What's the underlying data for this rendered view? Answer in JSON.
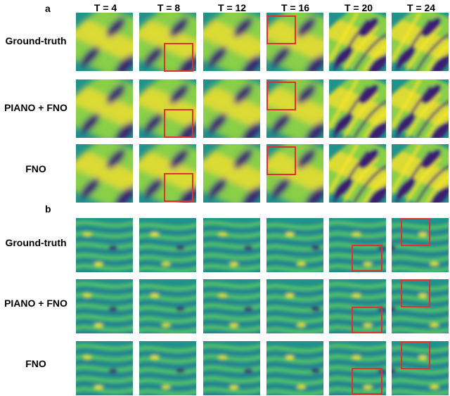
{
  "panels": [
    {
      "label": "a",
      "columns": [
        "T = 4",
        "T = 8",
        "T = 12",
        "T = 16",
        "T = 20",
        "T = 24"
      ],
      "rows": [
        "Ground-truth",
        "PIANO + FNO",
        "FNO"
      ],
      "colormap": "viridis"
    },
    {
      "label": "b",
      "rows": [
        "Ground-truth",
        "PIANO + FNO",
        "FNO"
      ],
      "colormap": "viridis"
    }
  ],
  "colors": {
    "highlight": "#e0312f",
    "viridis_dark": "#3b1f6e",
    "viridis_mid": "#21918c",
    "viridis_bright": "#fde725"
  }
}
